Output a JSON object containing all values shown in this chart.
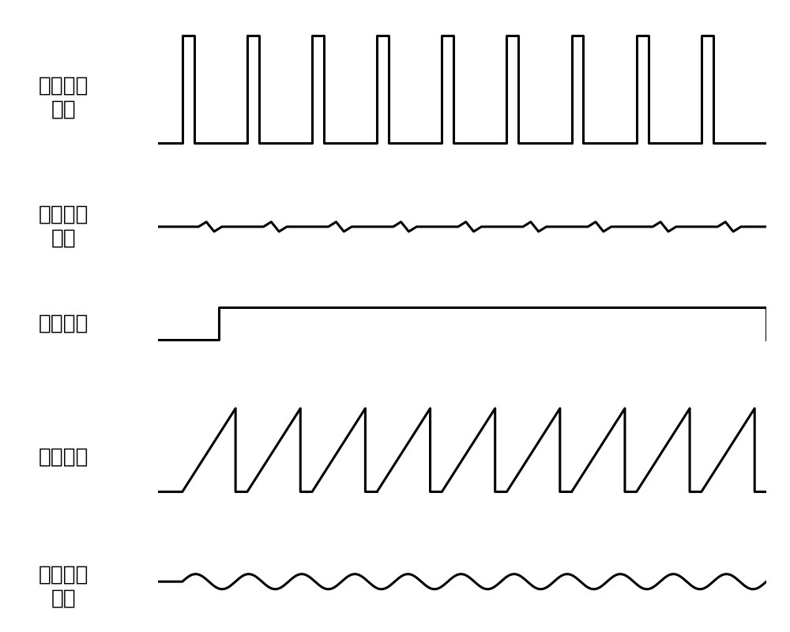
{
  "labels": [
    "电压检测\n信号",
    "电压传输\n信号",
    "控制信号",
    "斜波信号",
    "负载电流\n信号"
  ],
  "n_panels": 5,
  "background_color": "#ffffff",
  "line_color": "#000000",
  "line_width": 2.2,
  "label_fontsize": 19,
  "n_pulses": 9,
  "pulse_duty": 0.18,
  "ramp_duty": 0.82,
  "wave_amplitude": 0.12,
  "wave_frequency": 11.0,
  "zigzag_amplitude": 0.08,
  "zigzag_n": 9
}
